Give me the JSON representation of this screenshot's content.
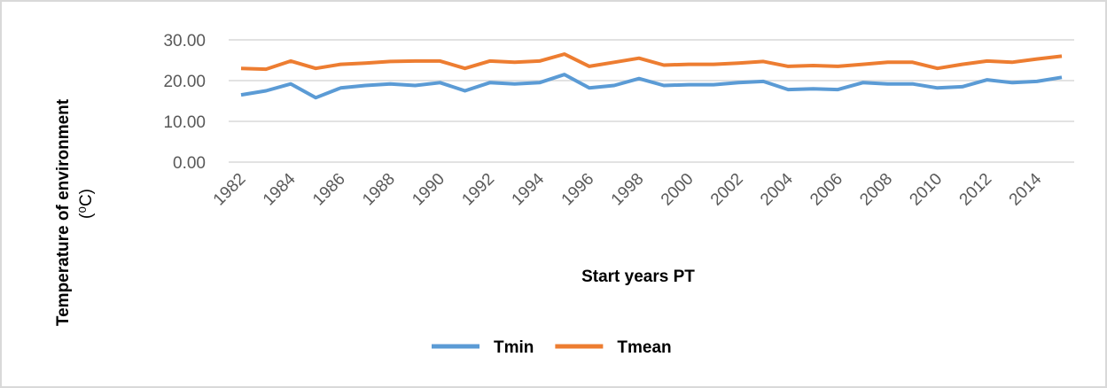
{
  "chart_data": {
    "type": "line",
    "ylabel": [
      "Temperature of environment",
      "(⁰C)"
    ],
    "xlabel": "Start years PT",
    "categories": [
      "1982",
      null,
      "1984",
      null,
      "1986",
      null,
      "1988",
      null,
      "1990",
      null,
      "1992",
      null,
      "1994",
      null,
      "1996",
      null,
      "1998",
      null,
      "2000",
      null,
      "2002",
      null,
      "2004",
      null,
      "2006",
      null,
      "2008",
      null,
      "2010",
      null,
      "2012",
      null,
      "2014",
      null
    ],
    "series": [
      {
        "name": "Tmin",
        "color": "#5b9bd5",
        "values": [
          16.5,
          17.5,
          19.2,
          15.8,
          18.2,
          18.8,
          19.2,
          18.8,
          19.5,
          17.5,
          19.5,
          19.2,
          19.5,
          21.5,
          18.2,
          18.8,
          20.5,
          18.8,
          19.0,
          19.0,
          19.5,
          19.8,
          17.8,
          18.0,
          17.8,
          19.5,
          19.2,
          19.2,
          18.2,
          18.5,
          20.2,
          19.5,
          19.8,
          20.8
        ]
      },
      {
        "name": "Tmean",
        "color": "#ed7d31",
        "values": [
          23.0,
          22.8,
          24.8,
          23.0,
          24.0,
          24.3,
          24.7,
          24.8,
          24.8,
          23.0,
          24.8,
          24.5,
          24.8,
          26.5,
          23.5,
          24.5,
          25.5,
          23.8,
          24.0,
          24.0,
          24.3,
          24.7,
          23.5,
          23.7,
          23.5,
          24.0,
          24.5,
          24.5,
          23.0,
          24.0,
          24.8,
          24.5,
          25.3,
          26.0
        ]
      }
    ],
    "ylim": [
      0,
      30
    ],
    "yticks": [
      {
        "value": 0,
        "label": "0.00"
      },
      {
        "value": 10,
        "label": "10.00"
      },
      {
        "value": 20,
        "label": "20.00"
      },
      {
        "value": 30,
        "label": "30.00"
      }
    ],
    "grid": true,
    "legend": "bottom"
  }
}
